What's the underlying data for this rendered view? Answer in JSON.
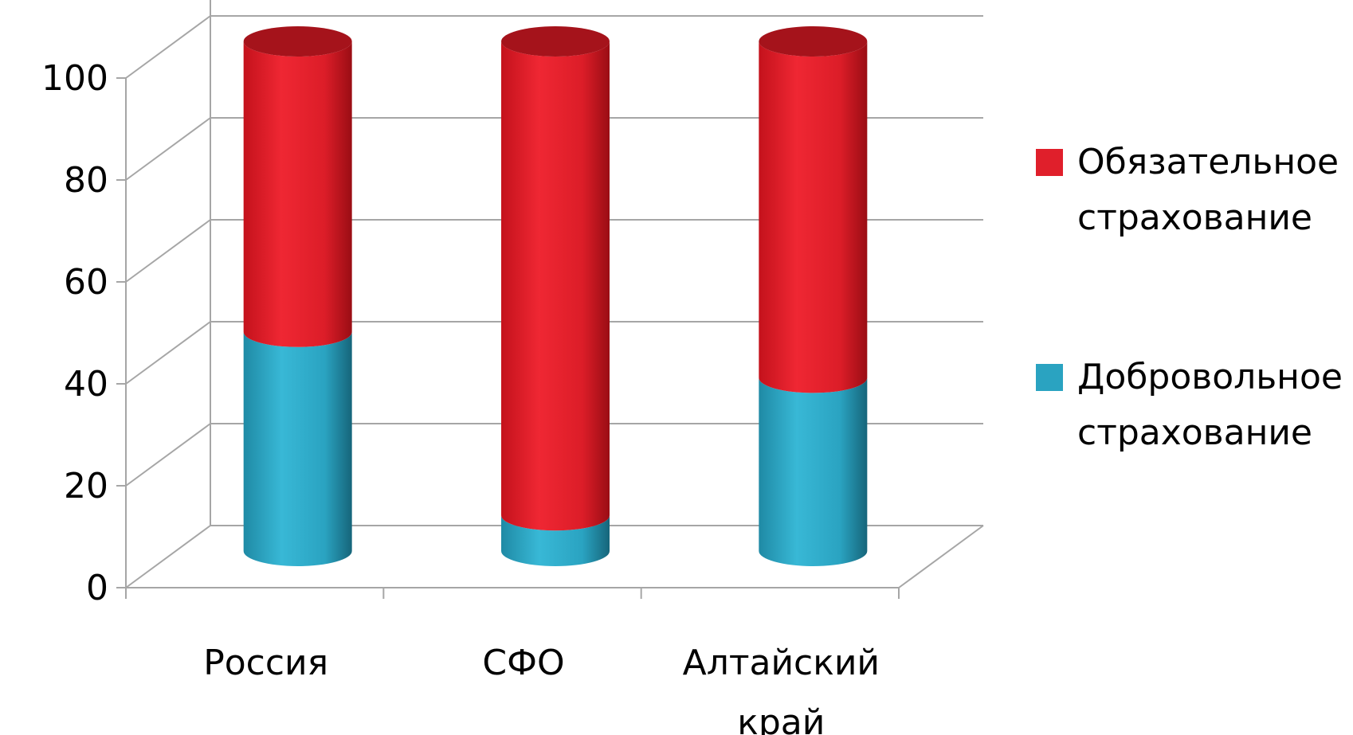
{
  "chart_data": {
    "type": "bar",
    "stacked": true,
    "style": "3d-cylinder",
    "categories": [
      "Россия",
      "СФО",
      "Алтайский край"
    ],
    "category_lines": [
      [
        "Россия"
      ],
      [
        "СФО"
      ],
      [
        "Алтайский",
        "край"
      ]
    ],
    "series": [
      {
        "name": "Добровольное страхование",
        "name_lines": [
          "Добровольное",
          "страхование"
        ],
        "values": [
          43,
          7,
          34
        ],
        "color": "#2AA3C1"
      },
      {
        "name": "Обязательное страхование",
        "name_lines": [
          "Обязательное",
          "страхование"
        ],
        "values": [
          57,
          93,
          66
        ],
        "color": "#E01F2B"
      }
    ],
    "ylim": [
      0,
      100
    ],
    "yticks": [
      0,
      20,
      40,
      60,
      80,
      100
    ],
    "title": "",
    "xlabel": "",
    "ylabel": "",
    "grid": true,
    "legend_position": "right"
  }
}
